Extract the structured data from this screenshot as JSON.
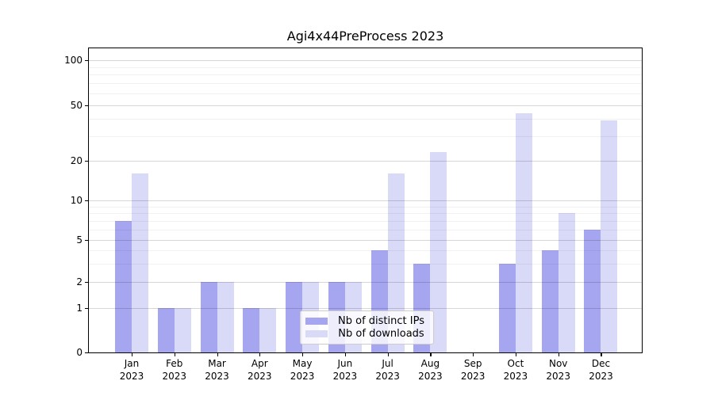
{
  "chart_data": {
    "type": "bar",
    "title": "Agi4x44PreProcess 2023",
    "year": "2023",
    "categories": [
      "Jan",
      "Feb",
      "Mar",
      "Apr",
      "May",
      "Jun",
      "Jul",
      "Aug",
      "Sep",
      "Oct",
      "Nov",
      "Dec"
    ],
    "series": [
      {
        "name": "Nb of distinct IPs",
        "color": "#a6a6f0",
        "values": [
          7,
          1,
          2,
          1,
          2,
          2,
          4,
          3,
          0,
          3,
          4,
          6
        ]
      },
      {
        "name": "Nb of downloads",
        "color": "#d9d9f8",
        "values": [
          16,
          1,
          2,
          1,
          2,
          2,
          16,
          23,
          0,
          44,
          8,
          39
        ]
      }
    ],
    "xlabel": "",
    "ylabel": "",
    "yscale": "symlog",
    "y_ticks": [
      0,
      1,
      2,
      5,
      10,
      20,
      50,
      100
    ],
    "ylim": [
      0,
      120
    ],
    "grid": true,
    "legend_position": "lower center",
    "colors": {
      "distinct_ips_bar": "#a6a6f0",
      "downloads_bar": "#d9d9f8",
      "grid_major": "#d6d6d6",
      "grid_minor": "#f1f1f1",
      "axis": "#000000",
      "background": "#ffffff"
    }
  }
}
